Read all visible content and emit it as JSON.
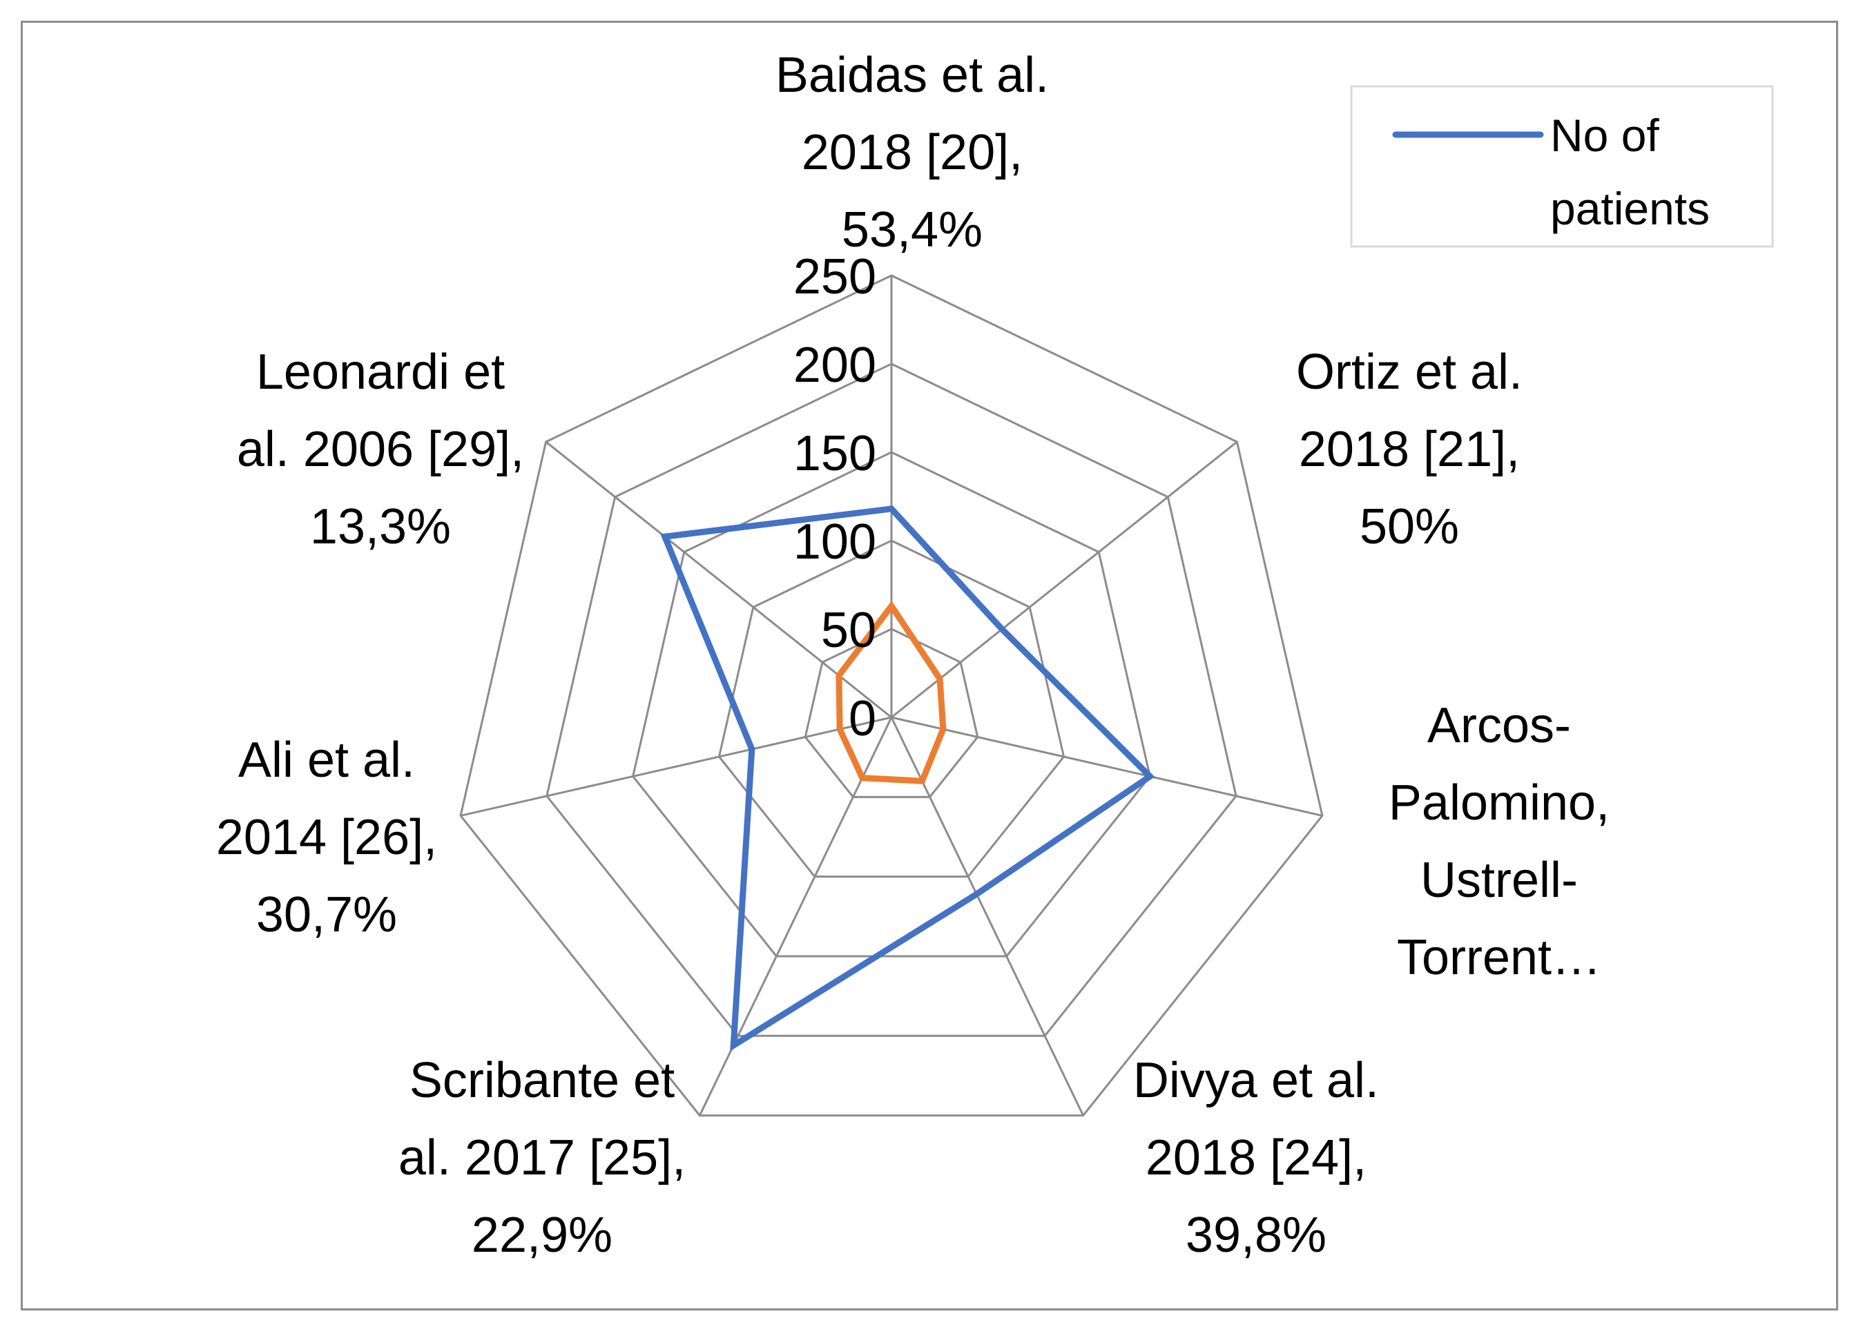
{
  "chart_data": {
    "type": "radar",
    "categories": [
      "Baidas et al. 2018 [20], 53,4%",
      "Ortiz et al. 2018 [21], 50%",
      "Arcos-Palomino, Ustrell-Torrent…",
      "Divya et al. 2018 [24], 39,8%",
      "Scribante et al. 2017 [25], 22,9%",
      "Ali et al. 2014 [26], 30,7%",
      "Leonardi et al. 2006 [29], 13,3%"
    ],
    "category_lines": [
      [
        "Baidas et al.",
        "2018 [20],",
        "53,4%"
      ],
      [
        "Ortiz et al.",
        "2018 [21],",
        "50%"
      ],
      [
        "Arcos-",
        "Palomino,",
        "Ustrell-",
        "Torrent…"
      ],
      [
        "Divya et al.",
        "2018 [24],",
        "39,8%"
      ],
      [
        "Scribante et",
        "al. 2017 [25],",
        "22,9%"
      ],
      [
        "Ali et al.",
        "2014 [26],",
        "30,7%"
      ],
      [
        "Leonardi et",
        "al. 2006 [29],",
        "13,3%"
      ]
    ],
    "series": [
      {
        "name": "No of patients",
        "color": "#4472c4",
        "values": [
          118,
          80,
          150,
          111,
          206,
          81,
          164
        ]
      },
      {
        "name": "",
        "color": "#ed7d31",
        "values": [
          63,
          35,
          30,
          40,
          38,
          30,
          38
        ]
      }
    ],
    "radial_ticks": [
      0,
      50,
      100,
      150,
      200,
      250
    ],
    "rlim": [
      0,
      250
    ],
    "grid_color": "#8c8c8c",
    "legend": {
      "position": "top-right",
      "entries": [
        "No of",
        "patients"
      ]
    }
  }
}
